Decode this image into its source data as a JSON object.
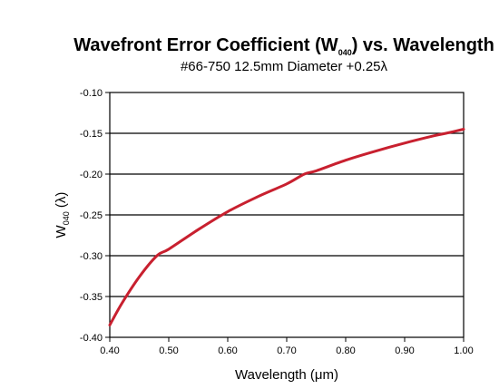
{
  "chart_data": {
    "type": "line",
    "title_main": "Wavefront Error Coefficient (W",
    "title_sub": "040",
    "title_tail": ") vs. Wavelength",
    "subtitle": "#66-750 12.5mm Diameter +0.25λ",
    "xlabel": "Wavelength (μm)",
    "ylabel_main": "W",
    "ylabel_sub": "040",
    "ylabel_tail": " (λ)",
    "xlim": [
      0.4,
      1.0
    ],
    "ylim": [
      -0.4,
      -0.1
    ],
    "x_ticks": [
      "0.40",
      "0.50",
      "0.60",
      "0.70",
      "0.80",
      "0.90",
      "1.00"
    ],
    "y_ticks": [
      "-0.10",
      "-0.15",
      "-0.20",
      "-0.25",
      "-0.30",
      "-0.35",
      "-0.40"
    ],
    "grid": "horizontal",
    "series": [
      {
        "color": "#c8202f",
        "x": [
          0.4,
          0.42,
          0.45,
          0.48,
          0.5,
          0.55,
          0.6,
          0.65,
          0.7,
          0.73,
          0.75,
          0.8,
          0.85,
          0.9,
          0.95,
          0.97,
          1.0
        ],
        "y": [
          -0.385,
          -0.359,
          -0.326,
          -0.3,
          -0.292,
          -0.268,
          -0.246,
          -0.228,
          -0.212,
          -0.2,
          -0.196,
          -0.183,
          -0.172,
          -0.162,
          -0.153,
          -0.15,
          -0.145
        ]
      }
    ]
  }
}
